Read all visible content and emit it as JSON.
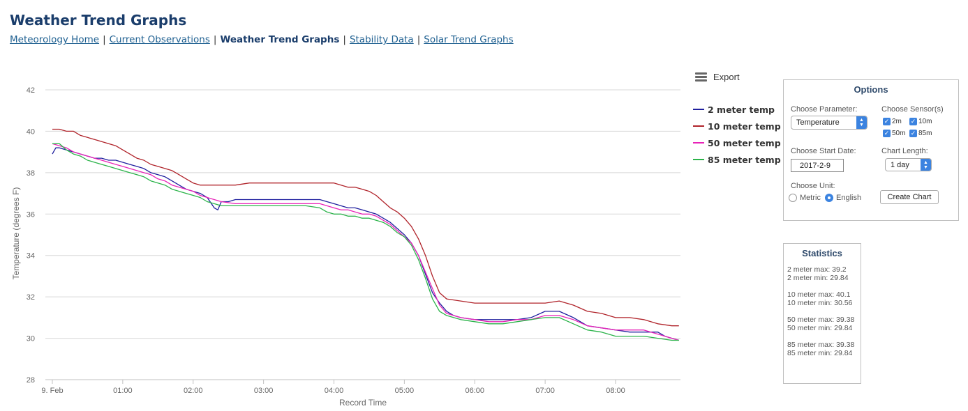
{
  "page": {
    "title": "Weather Trend Graphs",
    "nav": {
      "home": "Meteorology Home",
      "observations": "Current Observations",
      "current": "Weather Trend Graphs",
      "stability": "Stability Data",
      "solar": "Solar Trend Graphs",
      "separator": "|"
    }
  },
  "export_label": "Export",
  "options": {
    "title": "Options",
    "parameter_label": "Choose Parameter:",
    "parameter_value": "Temperature",
    "sensors_label": "Choose Sensor(s)",
    "sensors": [
      "2m",
      "10m",
      "50m",
      "85m"
    ],
    "start_date_label": "Choose Start Date:",
    "start_date_value": "2017-2-9",
    "length_label": "Chart Length:",
    "length_value": "1 day",
    "unit_label": "Choose Unit:",
    "unit_metric": "Metric",
    "unit_english": "English",
    "create_button": "Create Chart"
  },
  "statistics": {
    "title": "Statistics",
    "groups": [
      [
        "2 meter max: 39.2",
        "2 meter min: 29.84"
      ],
      [
        "10 meter max: 40.1",
        "10 meter min: 30.56"
      ],
      [
        "50 meter max: 39.38",
        "50 meter min: 29.84"
      ],
      [
        "85 meter max: 39.38",
        "85 meter min: 29.84"
      ]
    ]
  },
  "chart_data": {
    "type": "line",
    "xlabel": "Record Time",
    "ylabel": "Temperature (degrees F)",
    "ylim": [
      28,
      42
    ],
    "yticks": [
      28,
      30,
      32,
      34,
      36,
      38,
      40,
      42
    ],
    "xlim": [
      0,
      8.9
    ],
    "xtick_values": [
      0,
      1,
      2,
      3,
      4,
      5,
      6,
      7,
      8
    ],
    "xtick_labels": [
      "9. Feb",
      "01:00",
      "02:00",
      "03:00",
      "04:00",
      "05:00",
      "06:00",
      "07:00",
      "08:00"
    ],
    "grid": true,
    "legend_position": "right",
    "series": [
      {
        "name": "2 meter temp",
        "color": "#1f1f9e",
        "x": [
          0,
          0.05,
          0.1,
          0.2,
          0.3,
          0.4,
          0.5,
          0.6,
          0.7,
          0.8,
          0.9,
          1.0,
          1.1,
          1.2,
          1.3,
          1.4,
          1.5,
          1.6,
          1.7,
          1.8,
          1.9,
          2.0,
          2.1,
          2.2,
          2.3,
          2.35,
          2.4,
          2.5,
          2.6,
          2.8,
          3.0,
          3.2,
          3.4,
          3.6,
          3.8,
          3.9,
          4.0,
          4.1,
          4.2,
          4.3,
          4.4,
          4.5,
          4.6,
          4.7,
          4.8,
          4.9,
          5.0,
          5.1,
          5.2,
          5.3,
          5.4,
          5.5,
          5.6,
          5.7,
          5.8,
          6.0,
          6.2,
          6.4,
          6.6,
          6.8,
          7.0,
          7.2,
          7.4,
          7.5,
          7.6,
          7.8,
          8.0,
          8.2,
          8.4,
          8.6,
          8.7,
          8.8,
          8.9
        ],
        "y": [
          38.9,
          39.2,
          39.2,
          39.1,
          39.0,
          38.9,
          38.8,
          38.7,
          38.7,
          38.6,
          38.6,
          38.5,
          38.4,
          38.3,
          38.2,
          38.0,
          37.9,
          37.8,
          37.6,
          37.4,
          37.2,
          37.1,
          37.0,
          36.8,
          36.3,
          36.2,
          36.6,
          36.6,
          36.7,
          36.7,
          36.7,
          36.7,
          36.7,
          36.7,
          36.7,
          36.6,
          36.5,
          36.4,
          36.3,
          36.3,
          36.2,
          36.1,
          36.0,
          35.8,
          35.6,
          35.3,
          35.0,
          34.6,
          34.0,
          33.1,
          32.2,
          31.7,
          31.3,
          31.1,
          31.0,
          30.9,
          30.9,
          30.9,
          30.9,
          31.0,
          31.3,
          31.3,
          31.0,
          30.8,
          30.6,
          30.5,
          30.4,
          30.3,
          30.3,
          30.3,
          30.1,
          30.0,
          29.9
        ]
      },
      {
        "name": "10 meter temp",
        "color": "#b0232a",
        "x": [
          0,
          0.1,
          0.2,
          0.3,
          0.4,
          0.5,
          0.6,
          0.7,
          0.8,
          0.9,
          1.0,
          1.1,
          1.2,
          1.3,
          1.4,
          1.5,
          1.6,
          1.7,
          1.8,
          1.9,
          2.0,
          2.1,
          2.2,
          2.3,
          2.4,
          2.6,
          2.8,
          3.0,
          3.2,
          3.4,
          3.6,
          3.8,
          4.0,
          4.1,
          4.2,
          4.3,
          4.4,
          4.5,
          4.6,
          4.7,
          4.8,
          4.9,
          5.0,
          5.1,
          5.2,
          5.3,
          5.4,
          5.5,
          5.6,
          5.8,
          6.0,
          6.2,
          6.4,
          6.6,
          6.8,
          7.0,
          7.2,
          7.4,
          7.6,
          7.8,
          8.0,
          8.2,
          8.4,
          8.6,
          8.8,
          8.9
        ],
        "y": [
          40.1,
          40.1,
          40.0,
          40.0,
          39.8,
          39.7,
          39.6,
          39.5,
          39.4,
          39.3,
          39.1,
          38.9,
          38.7,
          38.6,
          38.4,
          38.3,
          38.2,
          38.1,
          37.9,
          37.7,
          37.5,
          37.4,
          37.4,
          37.4,
          37.4,
          37.4,
          37.5,
          37.5,
          37.5,
          37.5,
          37.5,
          37.5,
          37.5,
          37.4,
          37.3,
          37.3,
          37.2,
          37.1,
          36.9,
          36.6,
          36.3,
          36.1,
          35.8,
          35.4,
          34.8,
          34.0,
          33.0,
          32.2,
          31.9,
          31.8,
          31.7,
          31.7,
          31.7,
          31.7,
          31.7,
          31.7,
          31.8,
          31.6,
          31.3,
          31.2,
          31.0,
          31.0,
          30.9,
          30.7,
          30.6,
          30.6
        ]
      },
      {
        "name": "50 meter temp",
        "color": "#e823b8",
        "x": [
          0,
          0.1,
          0.2,
          0.3,
          0.4,
          0.5,
          0.6,
          0.7,
          0.8,
          0.9,
          1.0,
          1.1,
          1.2,
          1.3,
          1.4,
          1.5,
          1.6,
          1.7,
          1.8,
          1.9,
          2.0,
          2.1,
          2.2,
          2.3,
          2.4,
          2.6,
          2.8,
          3.0,
          3.2,
          3.4,
          3.6,
          3.8,
          3.9,
          4.0,
          4.1,
          4.2,
          4.3,
          4.4,
          4.5,
          4.6,
          4.7,
          4.8,
          4.9,
          5.0,
          5.1,
          5.2,
          5.3,
          5.4,
          5.5,
          5.6,
          5.8,
          6.0,
          6.2,
          6.4,
          6.6,
          6.8,
          7.0,
          7.2,
          7.4,
          7.6,
          7.8,
          8.0,
          8.2,
          8.4,
          8.6,
          8.8,
          8.9
        ],
        "y": [
          39.4,
          39.3,
          39.2,
          39.0,
          38.9,
          38.8,
          38.7,
          38.6,
          38.5,
          38.4,
          38.3,
          38.2,
          38.1,
          38.0,
          37.9,
          37.7,
          37.6,
          37.4,
          37.3,
          37.2,
          37.1,
          36.9,
          36.8,
          36.7,
          36.6,
          36.5,
          36.5,
          36.5,
          36.5,
          36.5,
          36.5,
          36.5,
          36.4,
          36.3,
          36.2,
          36.2,
          36.1,
          36.0,
          36.0,
          35.9,
          35.7,
          35.5,
          35.2,
          34.9,
          34.6,
          34.0,
          33.2,
          32.4,
          31.6,
          31.2,
          31.0,
          30.9,
          30.8,
          30.8,
          30.9,
          30.9,
          31.1,
          31.1,
          30.9,
          30.6,
          30.5,
          30.4,
          30.4,
          30.4,
          30.2,
          30.0,
          29.9
        ]
      },
      {
        "name": "85 meter temp",
        "color": "#2bb34a",
        "x": [
          0,
          0.1,
          0.2,
          0.3,
          0.4,
          0.5,
          0.6,
          0.7,
          0.8,
          0.9,
          1.0,
          1.1,
          1.2,
          1.3,
          1.4,
          1.5,
          1.6,
          1.7,
          1.8,
          1.9,
          2.0,
          2.1,
          2.2,
          2.3,
          2.4,
          2.6,
          2.8,
          3.0,
          3.2,
          3.4,
          3.6,
          3.8,
          3.9,
          4.0,
          4.1,
          4.2,
          4.3,
          4.4,
          4.5,
          4.6,
          4.7,
          4.8,
          4.9,
          5.0,
          5.1,
          5.2,
          5.3,
          5.4,
          5.5,
          5.6,
          5.8,
          6.0,
          6.2,
          6.4,
          6.6,
          6.8,
          7.0,
          7.2,
          7.4,
          7.6,
          7.8,
          8.0,
          8.2,
          8.4,
          8.6,
          8.8,
          8.9
        ],
        "y": [
          39.4,
          39.4,
          39.1,
          38.9,
          38.8,
          38.6,
          38.5,
          38.4,
          38.3,
          38.2,
          38.1,
          38.0,
          37.9,
          37.8,
          37.6,
          37.5,
          37.4,
          37.2,
          37.1,
          37.0,
          36.9,
          36.8,
          36.6,
          36.5,
          36.4,
          36.4,
          36.4,
          36.4,
          36.4,
          36.4,
          36.4,
          36.3,
          36.1,
          36.0,
          36.0,
          35.9,
          35.9,
          35.8,
          35.8,
          35.7,
          35.6,
          35.4,
          35.1,
          34.9,
          34.5,
          33.8,
          32.9,
          31.9,
          31.3,
          31.1,
          30.9,
          30.8,
          30.7,
          30.7,
          30.8,
          30.9,
          31.0,
          31.0,
          30.7,
          30.4,
          30.3,
          30.1,
          30.1,
          30.1,
          30.0,
          29.9,
          29.9
        ]
      }
    ]
  }
}
